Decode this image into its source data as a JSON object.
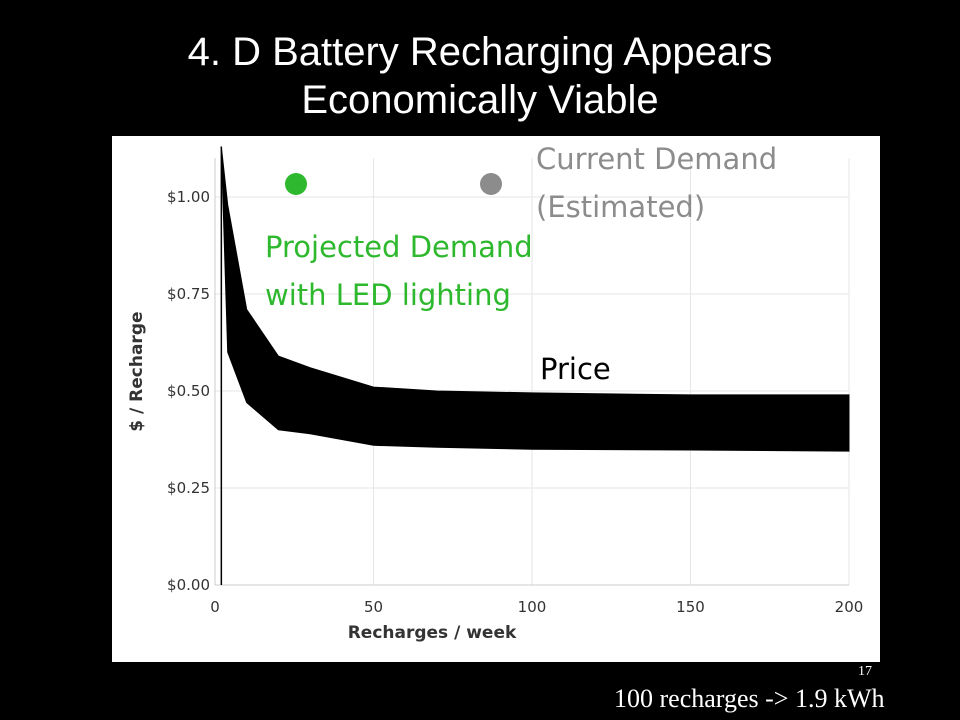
{
  "slide": {
    "title_line1": "4. D Battery Recharging Appears",
    "title_line2": "Economically Viable",
    "page_number": "17",
    "footnote": "100 recharges -> 1.9 kWh"
  },
  "colors": {
    "background": "#000000",
    "chart_background": "#ffffff",
    "price_band": "#000000",
    "projected_demand": "#2db82d",
    "current_demand": "#8c8c8c"
  },
  "chart_data": {
    "type": "area",
    "xlabel": "Recharges / week",
    "ylabel": "$ / Recharge",
    "xlim": [
      0,
      200
    ],
    "ylim": [
      0,
      1.1
    ],
    "grid": true,
    "x_ticks": [
      0,
      50,
      100,
      150,
      200
    ],
    "x_tick_labels": [
      "0",
      "50",
      "100",
      "150",
      "200"
    ],
    "y_ticks": [
      0,
      0.25,
      0.5,
      0.75,
      1.0
    ],
    "y_tick_labels": [
      "$0.00",
      "$0.25",
      "$0.50",
      "$0.75",
      "$1.00"
    ],
    "series": [
      {
        "name": "Price",
        "kind": "band",
        "color": "#000000",
        "x": [
          2,
          4,
          10,
          20,
          30,
          50,
          70,
          100,
          150,
          200
        ],
        "upper": [
          1.13,
          0.98,
          0.71,
          0.59,
          0.56,
          0.51,
          0.5,
          0.495,
          0.49,
          0.49
        ],
        "lower": [
          1.13,
          0.6,
          0.47,
          0.4,
          0.39,
          0.36,
          0.355,
          0.35,
          0.348,
          0.345
        ]
      }
    ],
    "annotations": [
      {
        "id": "price",
        "text": "Price",
        "color": "#000000"
      },
      {
        "id": "projected",
        "lines": [
          "Projected Demand",
          "with LED lighting"
        ],
        "color": "#2db82d"
      },
      {
        "id": "current",
        "lines": [
          "Current Demand",
          "(Estimated)"
        ],
        "color": "#8c8c8c"
      }
    ]
  }
}
